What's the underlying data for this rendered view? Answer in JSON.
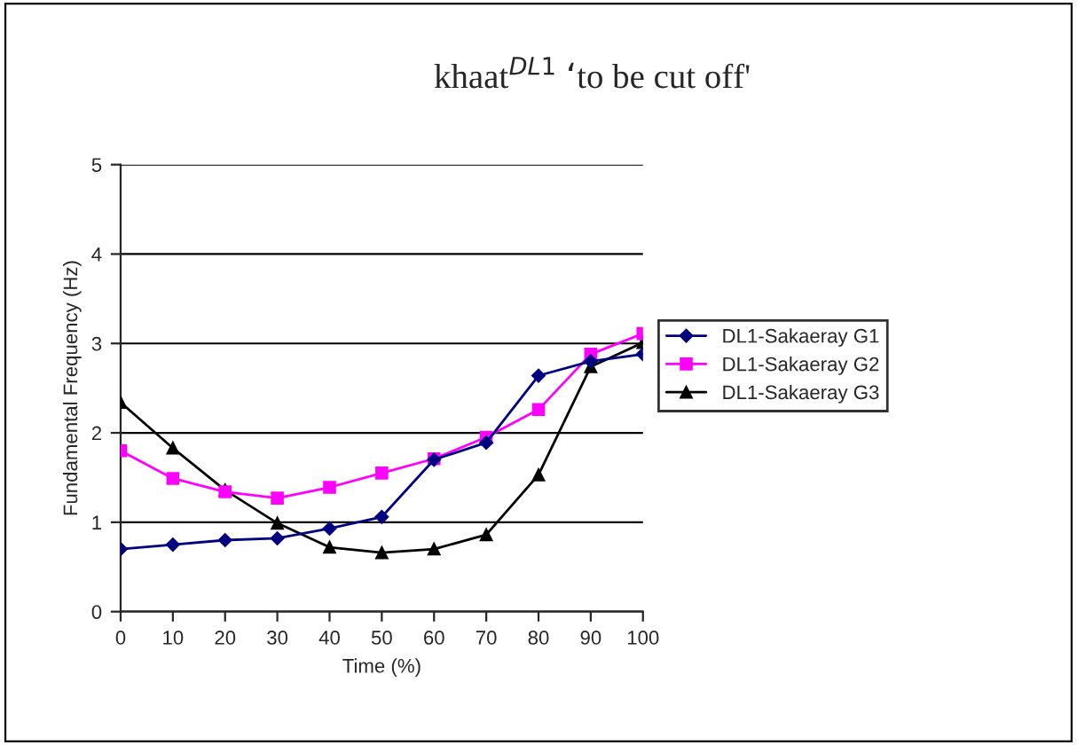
{
  "chart_data": {
    "type": "line",
    "title": "khaat$^{DL1}$ ‘to be cut off'",
    "xlabel": "Time (%)",
    "ylabel": "Fundamental Frequency (Hz)",
    "x": [
      0,
      10,
      20,
      30,
      40,
      50,
      60,
      70,
      80,
      90,
      100
    ],
    "series": [
      {
        "name": "DL1-Sakaeray G1",
        "color": "#000080",
        "marker": "diamond",
        "values": [
          0.7,
          0.75,
          0.8,
          0.82,
          0.93,
          1.06,
          1.7,
          1.89,
          2.64,
          2.8,
          2.88
        ]
      },
      {
        "name": "DL1-Sakaeray G2",
        "color": "#ff00ff",
        "marker": "square",
        "values": [
          1.8,
          1.49,
          1.34,
          1.27,
          1.39,
          1.55,
          1.71,
          1.95,
          2.26,
          2.88,
          3.11
        ]
      },
      {
        "name": "DL1-Sakaeray G3",
        "color": "#000000",
        "marker": "triangle",
        "values": [
          2.34,
          1.83,
          1.36,
          0.99,
          0.72,
          0.66,
          0.7,
          0.86,
          1.53,
          2.74,
          3.01
        ]
      }
    ],
    "xlim": [
      0,
      100
    ],
    "xticks": [
      0,
      10,
      20,
      30,
      40,
      50,
      60,
      70,
      80,
      90,
      100
    ],
    "ylim": [
      0,
      5
    ],
    "yticks": [
      0,
      1,
      2,
      3,
      4,
      5
    ],
    "grid": "y",
    "legend": "right"
  }
}
